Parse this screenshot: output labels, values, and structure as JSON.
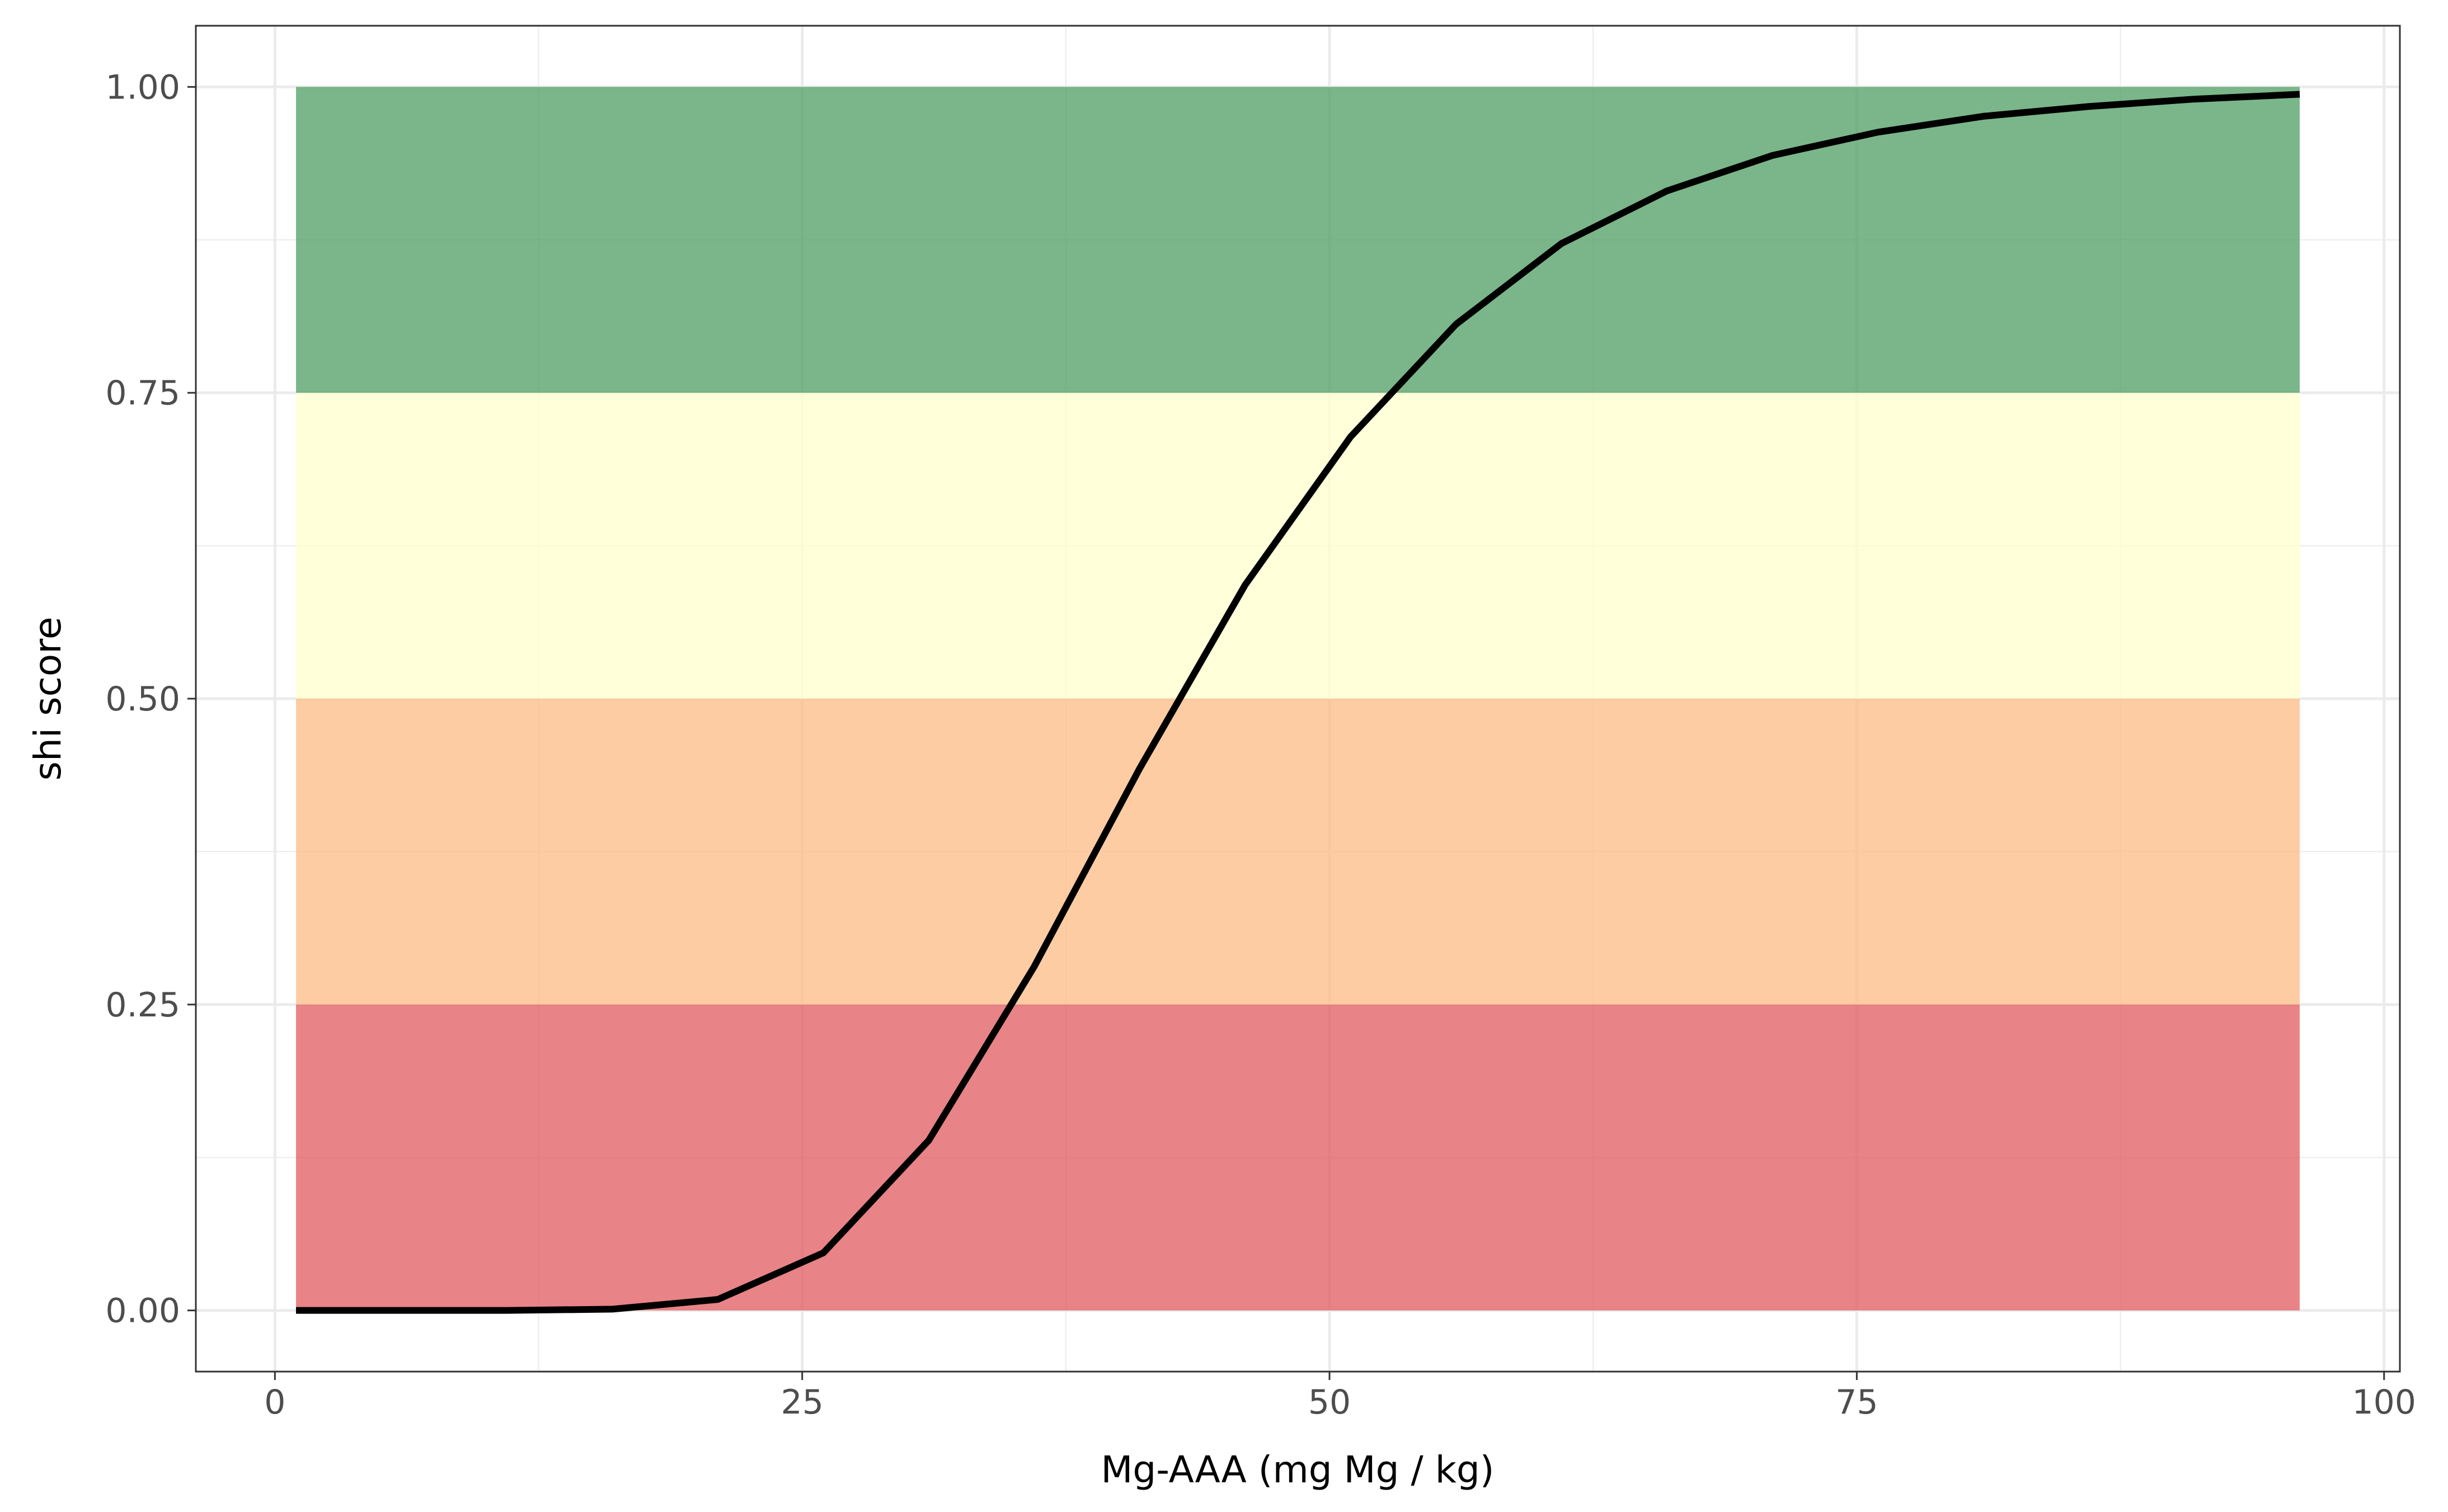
{
  "chart_data": {
    "type": "line",
    "title": "",
    "xlabel": "Mg-AAA (mg Mg / kg)",
    "ylabel": "shi score",
    "xlim": [
      -3.75,
      100.75
    ],
    "ylim": [
      -0.05,
      1.05
    ],
    "x_ticks": [
      0,
      25,
      50,
      75,
      100
    ],
    "y_ticks": [
      0,
      0.25,
      0.5,
      0.75,
      1.0
    ],
    "x_tick_labels": [
      "0",
      "25",
      "50",
      "75",
      "100"
    ],
    "y_tick_labels": [
      "0.00",
      "0.25",
      "0.50",
      "0.75",
      "1.00"
    ],
    "grid": true,
    "legend": "none",
    "bands": [
      {
        "x_range": [
          1,
          96
        ],
        "y_range": [
          0,
          0.25
        ],
        "color": "#e05a5f"
      },
      {
        "x_range": [
          1,
          96
        ],
        "y_range": [
          0.25,
          0.5
        ],
        "color": "#fcbb84"
      },
      {
        "x_range": [
          1,
          96
        ],
        "y_range": [
          0.5,
          0.75
        ],
        "color": "#ffffcc"
      },
      {
        "x_range": [
          1,
          96
        ],
        "y_range": [
          0.75,
          1.0
        ],
        "color": "#4d9e63"
      }
    ],
    "series": [
      {
        "color": "#000000",
        "x": [
          1,
          6,
          11,
          16,
          21,
          26,
          31,
          36,
          41,
          46,
          51,
          56,
          61,
          66,
          71,
          76,
          81,
          86,
          91,
          96
        ],
        "y": [
          0.0,
          0.0,
          0.0,
          0.001,
          0.009,
          0.047,
          0.139,
          0.281,
          0.443,
          0.593,
          0.714,
          0.806,
          0.872,
          0.915,
          0.944,
          0.963,
          0.976,
          0.984,
          0.99,
          0.994
        ]
      }
    ]
  }
}
